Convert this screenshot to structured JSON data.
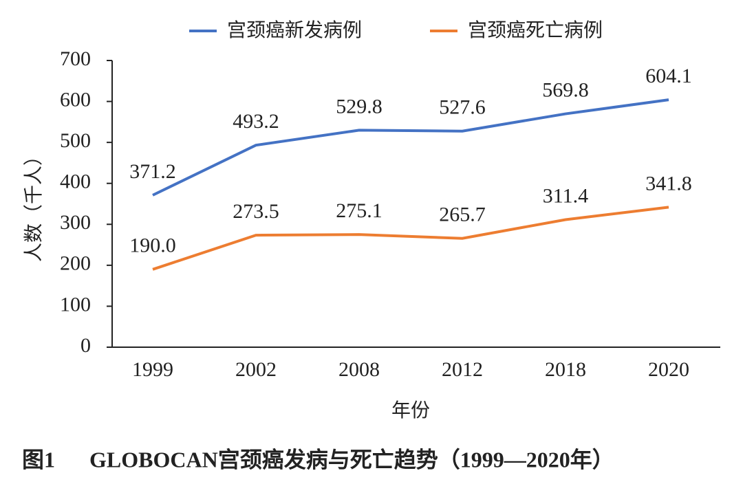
{
  "chart_data": {
    "type": "line",
    "categories": [
      "1999",
      "2002",
      "2008",
      "2012",
      "2018",
      "2020"
    ],
    "series": [
      {
        "name": "宫颈癌新发病例",
        "color": "#4472c4",
        "values": [
          371.2,
          493.2,
          529.8,
          527.6,
          569.8,
          604.1
        ],
        "value_labels": [
          "371.2",
          "493.2",
          "529.8",
          "527.6",
          "569.8",
          "604.1"
        ]
      },
      {
        "name": "宫颈癌死亡病例",
        "color": "#ed7d31",
        "values": [
          190.0,
          273.5,
          275.1,
          265.7,
          311.4,
          341.8
        ],
        "value_labels": [
          "190.0",
          "273.5",
          "275.1",
          "265.7",
          "311.4",
          "341.8"
        ]
      }
    ],
    "ylim": [
      0,
      700
    ],
    "yticks": [
      0,
      100,
      200,
      300,
      400,
      500,
      600,
      700
    ],
    "y_label": "人数（千人）",
    "x_label": "年份",
    "figure_label": "图1",
    "caption": "GLOBOCAN宫颈癌发病与死亡趋势（1999—2020年）"
  }
}
